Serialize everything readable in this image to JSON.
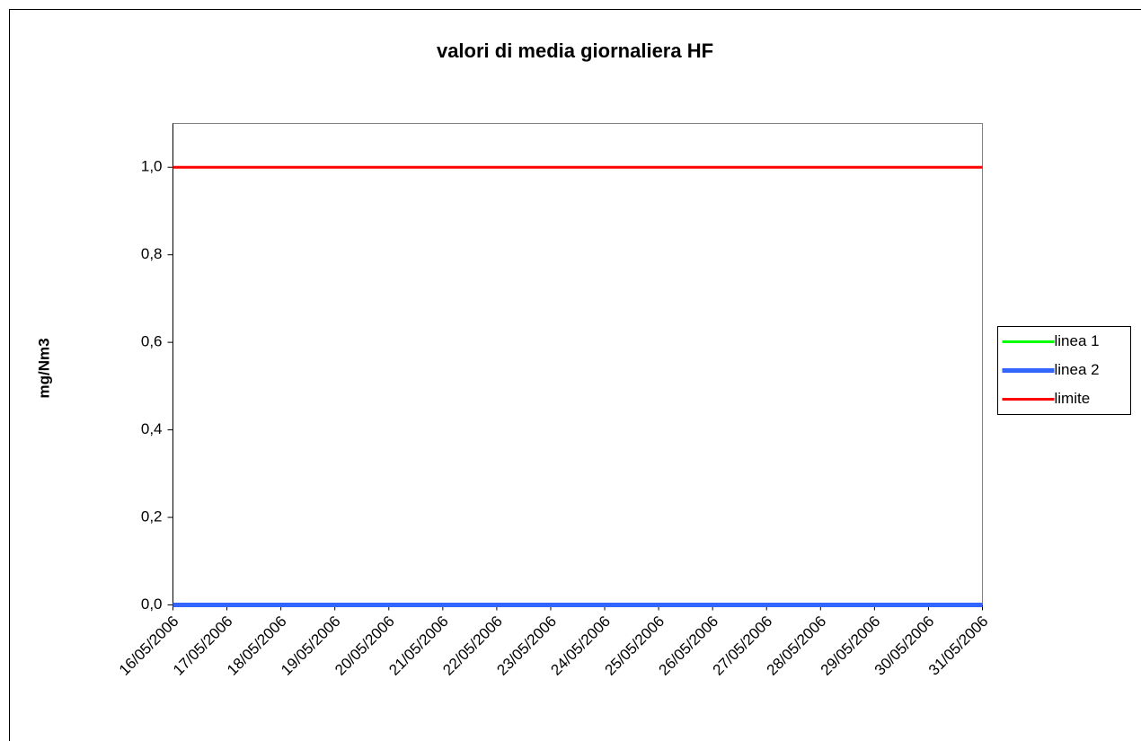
{
  "chart_data": {
    "type": "line",
    "title": "valori di media giornaliera  HF",
    "y_label": "mg/Nm3",
    "categories": [
      "16/05/2006",
      "17/05/2006",
      "18/05/2006",
      "19/05/2006",
      "20/05/2006",
      "21/05/2006",
      "22/05/2006",
      "23/05/2006",
      "24/05/2006",
      "25/05/2006",
      "26/05/2006",
      "27/05/2006",
      "28/05/2006",
      "29/05/2006",
      "30/05/2006",
      "31/05/2006"
    ],
    "series": [
      {
        "name": "linea 1",
        "color": "#00ff00",
        "values": [
          0,
          0,
          0,
          0,
          0,
          0,
          0,
          0,
          0,
          0,
          0,
          0,
          0,
          0,
          0,
          0
        ]
      },
      {
        "name": "linea 2",
        "color": "#3366ff",
        "values": [
          0,
          0,
          0,
          0,
          0,
          0,
          0,
          0,
          0,
          0,
          0,
          0,
          0,
          0,
          0,
          0
        ]
      },
      {
        "name": "limite",
        "color": "#ff0000",
        "values": [
          1,
          1,
          1,
          1,
          1,
          1,
          1,
          1,
          1,
          1,
          1,
          1,
          1,
          1,
          1,
          1
        ]
      }
    ],
    "ylim": [
      0,
      1.1
    ],
    "yticks": [
      {
        "value": 0,
        "label": "0,0"
      },
      {
        "value": 0.2,
        "label": "0,2"
      },
      {
        "value": 0.4,
        "label": "0,4"
      },
      {
        "value": 0.6,
        "label": "0,6"
      },
      {
        "value": 0.8,
        "label": "0,8"
      },
      {
        "value": 1,
        "label": "1,0"
      }
    ],
    "legend": "right",
    "grid": false
  }
}
